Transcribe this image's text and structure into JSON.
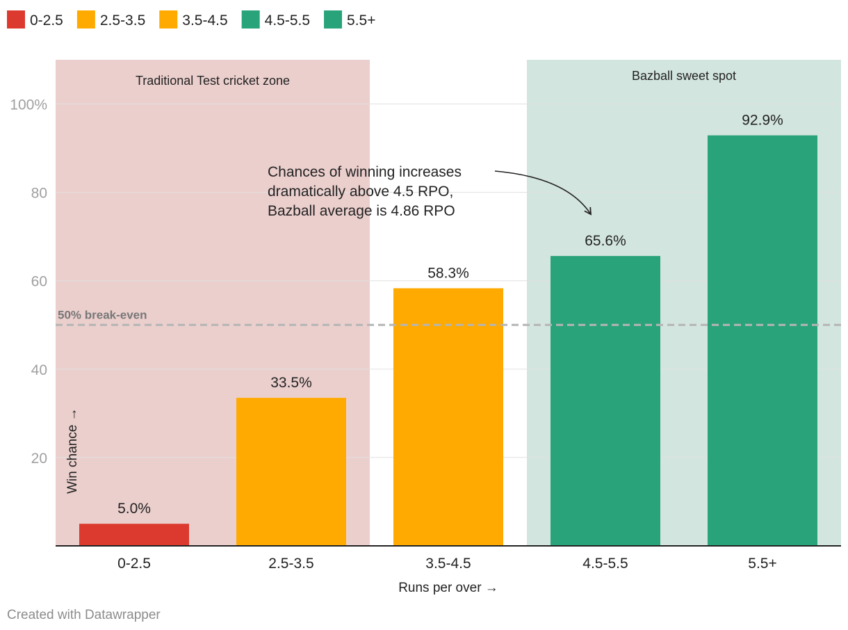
{
  "chart_data": {
    "type": "bar",
    "title": "",
    "categories": [
      "0-2.5",
      "2.5-3.5",
      "3.5-4.5",
      "4.5-5.5",
      "5.5+"
    ],
    "values": [
      5.0,
      33.5,
      58.3,
      65.6,
      92.9
    ],
    "value_labels": [
      "5.0%",
      "33.5%",
      "58.3%",
      "65.6%",
      "92.9%"
    ],
    "colors": [
      "#dc3a2f",
      "#ffaa00",
      "#ffaa00",
      "#29a37a",
      "#29a37a"
    ],
    "xlabel": "Runs per over →",
    "ylabel": "Win chance →",
    "ylim": [
      0,
      110
    ],
    "yticks": [
      20,
      40,
      60,
      80,
      100
    ],
    "ytick_labels": [
      "20",
      "40",
      "60",
      "80",
      "100%"
    ],
    "grid": true,
    "legend": {
      "position": "top-left",
      "entries": [
        {
          "label": "0-2.5",
          "color": "#dc3a2f"
        },
        {
          "label": "2.5-3.5",
          "color": "#ffaa00"
        },
        {
          "label": "3.5-4.5",
          "color": "#ffaa00"
        },
        {
          "label": "4.5-5.5",
          "color": "#29a37a"
        },
        {
          "label": "5.5+",
          "color": "#29a37a"
        }
      ]
    },
    "reference_line": {
      "value": 50,
      "label": "50% break-even",
      "color": "#b5b5b5"
    },
    "zones": [
      {
        "label": "Traditional Test cricket zone",
        "from_category": 0,
        "to_category": 1,
        "color": "#ebcfcd"
      },
      {
        "label": "Bazball sweet spot",
        "from_category": 3,
        "to_category": 4,
        "color": "#d3e5df"
      }
    ],
    "annotation": {
      "lines": [
        "Chances of winning increases",
        "dramatically above 4.5 RPO,",
        "Bazball average is 4.86 RPO"
      ],
      "target_category": 3
    }
  },
  "footer": {
    "credit": "Created with Datawrapper"
  }
}
